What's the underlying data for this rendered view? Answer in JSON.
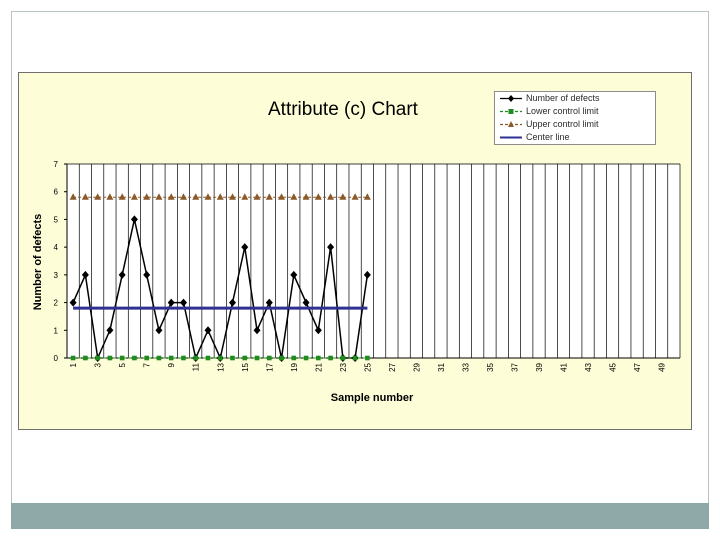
{
  "chart_data": {
    "type": "line",
    "title": "Attribute (c) Chart",
    "xlabel": "Sample number",
    "ylabel": "Number of defects",
    "x_tick_labels": [
      "1",
      "3",
      "5",
      "7",
      "9",
      "11",
      "13",
      "15",
      "17",
      "19",
      "21",
      "23",
      "25",
      "27",
      "29",
      "31",
      "33",
      "35",
      "37",
      "39",
      "41",
      "43",
      "45",
      "47",
      "49"
    ],
    "y_tick_labels": [
      "0",
      "1",
      "2",
      "3",
      "4",
      "5",
      "6",
      "7"
    ],
    "xlim": [
      1,
      50
    ],
    "ylim": [
      0,
      7
    ],
    "grid": "vertical",
    "legend_position": "top-right",
    "x": [
      1,
      2,
      3,
      4,
      5,
      6,
      7,
      8,
      9,
      10,
      11,
      12,
      13,
      14,
      15,
      16,
      17,
      18,
      19,
      20,
      21,
      22,
      23,
      24,
      25
    ],
    "series": [
      {
        "name": "Number of defects",
        "color": "#000000",
        "marker": "diamond",
        "values": [
          2,
          3,
          0,
          1,
          3,
          5,
          3,
          1,
          2,
          2,
          0,
          1,
          0,
          2,
          4,
          1,
          2,
          0,
          3,
          2,
          1,
          4,
          0,
          0,
          3
        ]
      },
      {
        "name": "Lower control limit",
        "color": "#1e8c1e",
        "marker": "square",
        "values": [
          0,
          0,
          0,
          0,
          0,
          0,
          0,
          0,
          0,
          0,
          0,
          0,
          0,
          0,
          0,
          0,
          0,
          0,
          0,
          0,
          0,
          0,
          0,
          0,
          0
        ]
      },
      {
        "name": "Upper control limit",
        "color": "#8b5a2b",
        "marker": "triangle",
        "values": [
          5.8,
          5.8,
          5.8,
          5.8,
          5.8,
          5.8,
          5.8,
          5.8,
          5.8,
          5.8,
          5.8,
          5.8,
          5.8,
          5.8,
          5.8,
          5.8,
          5.8,
          5.8,
          5.8,
          5.8,
          5.8,
          5.8,
          5.8,
          5.8,
          5.8
        ]
      },
      {
        "name": "Center line",
        "color": "#2e3192",
        "marker": "none",
        "values": [
          1.8,
          1.8,
          1.8,
          1.8,
          1.8,
          1.8,
          1.8,
          1.8,
          1.8,
          1.8,
          1.8,
          1.8,
          1.8,
          1.8,
          1.8,
          1.8,
          1.8,
          1.8,
          1.8,
          1.8,
          1.8,
          1.8,
          1.8,
          1.8,
          1.8
        ]
      }
    ]
  }
}
